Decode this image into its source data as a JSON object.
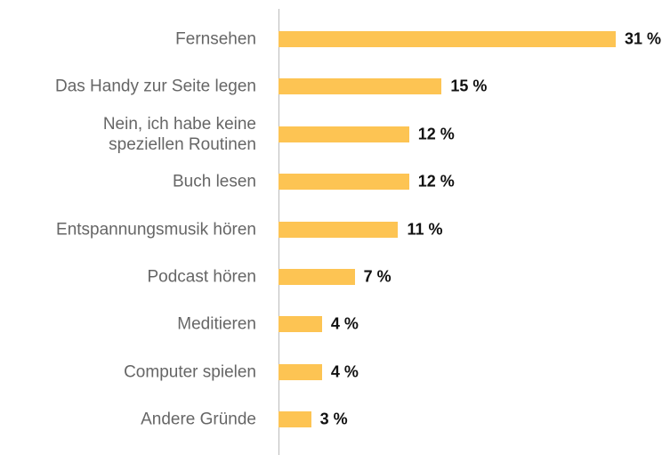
{
  "chart_data": {
    "type": "bar",
    "orientation": "horizontal",
    "categories": [
      "Fernsehen",
      "Das Handy zur Seite legen",
      "Nein, ich habe keine\nspeziellen Routinen",
      "Buch lesen",
      "Entspannungsmusik hören",
      "Podcast hören",
      "Meditieren",
      "Computer spielen",
      "Andere Gründe"
    ],
    "values": [
      31,
      15,
      12,
      12,
      11,
      7,
      4,
      4,
      3
    ],
    "value_labels": [
      "31 %",
      "15 %",
      "12 %",
      "12 %",
      "11 %",
      "7 %",
      "4 %",
      "4 %",
      "3 %"
    ],
    "color": "#fdc453"
  }
}
